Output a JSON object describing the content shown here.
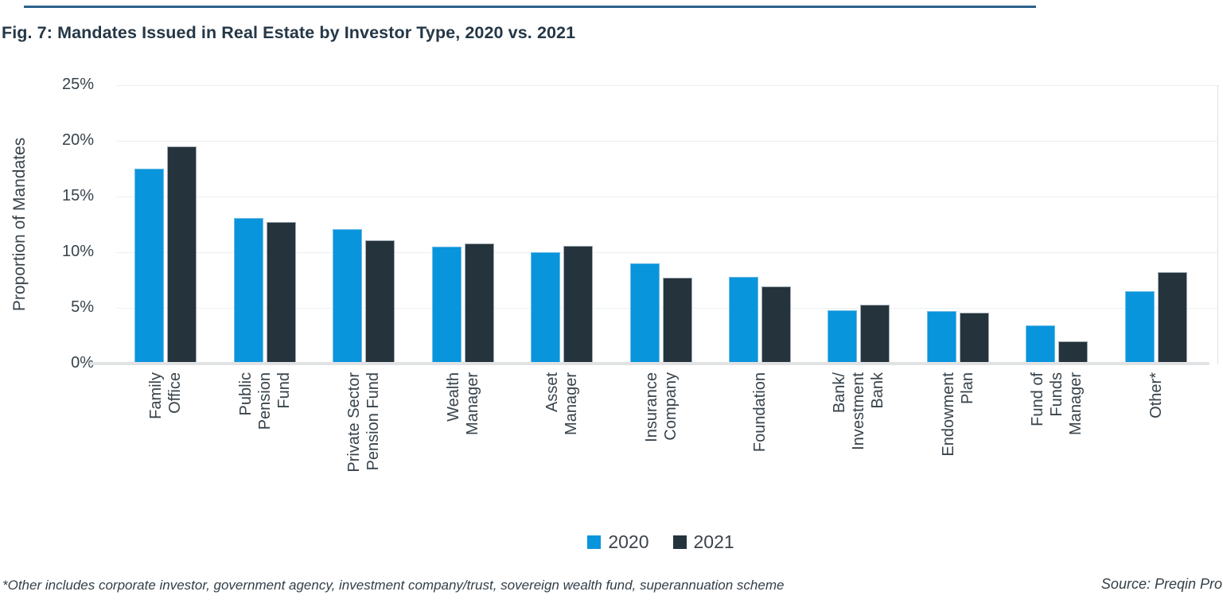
{
  "figure": {
    "title": "Fig. 7: Mandates Issued in Real Estate by Investor Type, 2020 vs. 2021",
    "footnote": "*Other includes corporate investor, government agency, investment company/trust, sovereign wealth fund, superannuation scheme",
    "source": "Source: Preqin Pro",
    "accent_color": "#2b628c",
    "background_color": "#ffffff",
    "text_color": "#37424a"
  },
  "chart_data": {
    "type": "bar",
    "title": "Fig. 7: Mandates Issued in Real Estate by Investor Type, 2020 vs. 2021",
    "xlabel": "",
    "ylabel": "Proportion of Mandates",
    "ylim": [
      0,
      25
    ],
    "ytick_step": 5,
    "ytick_labels": [
      "0%",
      "5%",
      "10%",
      "15%",
      "20%",
      "25%"
    ],
    "grid": true,
    "legend_position": "bottom",
    "categories": [
      {
        "name": "Family Office",
        "lines": [
          "Family",
          "Office"
        ]
      },
      {
        "name": "Public Pension Fund",
        "lines": [
          "Public",
          "Pension",
          "Fund"
        ]
      },
      {
        "name": "Private Sector Pension Fund",
        "lines": [
          "Private Sector",
          "Pension Fund"
        ]
      },
      {
        "name": "Wealth Manager",
        "lines": [
          "Wealth",
          "Manager"
        ]
      },
      {
        "name": "Asset Manager",
        "lines": [
          "Asset",
          "Manager"
        ]
      },
      {
        "name": "Insurance Company",
        "lines": [
          "Insurance",
          "Company"
        ]
      },
      {
        "name": "Foundation",
        "lines": [
          "Foundation"
        ]
      },
      {
        "name": "Bank/Investment Bank",
        "lines": [
          "Bank/",
          "Investment",
          "Bank"
        ]
      },
      {
        "name": "Endowment Plan",
        "lines": [
          "Endowment",
          "Plan"
        ]
      },
      {
        "name": "Fund of Funds Manager",
        "lines": [
          "Fund of",
          "Funds",
          "Manager"
        ]
      },
      {
        "name": "Other*",
        "lines": [
          "Other*"
        ]
      }
    ],
    "series": [
      {
        "name": "2020",
        "color": "#0995DC",
        "border_color": "#6fbce8",
        "values": [
          17.5,
          13.1,
          12.1,
          10.5,
          10.0,
          9.0,
          7.8,
          4.8,
          4.7,
          3.4,
          6.5
        ]
      },
      {
        "name": "2021",
        "color": "#25333D",
        "border_color": "#a2acb3",
        "values": [
          19.5,
          12.7,
          11.1,
          10.8,
          10.6,
          7.7,
          6.9,
          5.3,
          4.6,
          2.0,
          8.2
        ]
      }
    ]
  }
}
